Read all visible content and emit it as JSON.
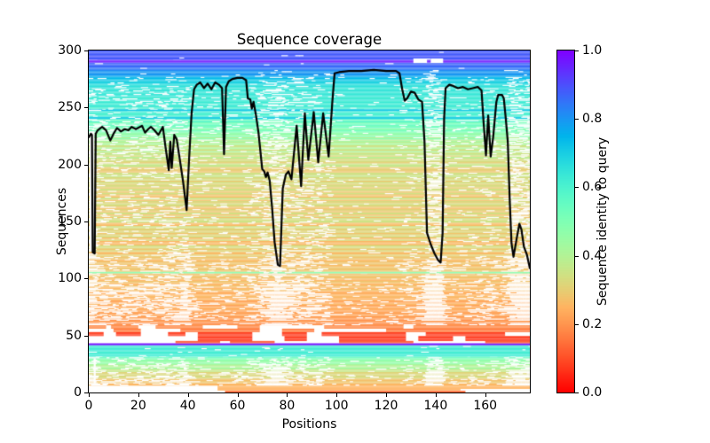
{
  "colors": {
    "background": "#ffffff",
    "text": "#000000",
    "frame": "#000000",
    "coverage_line": "#000000",
    "gap": "#ffffff"
  },
  "chart_data": {
    "type": "heatmap",
    "title": "Sequence coverage",
    "xlabel": "Positions",
    "ylabel": "Sequences",
    "xlim": [
      0,
      178
    ],
    "ylim": [
      0,
      300
    ],
    "xticks": [
      0,
      20,
      40,
      60,
      80,
      100,
      120,
      140,
      160
    ],
    "yticks": [
      0,
      50,
      100,
      150,
      200,
      250,
      300
    ],
    "grid": false,
    "colormap": "rainbow_r",
    "colorbar": {
      "label": "Sequence identity to query",
      "position": "right",
      "ticks": [
        0.0,
        0.2,
        0.4,
        0.6,
        0.8,
        1.0
      ],
      "tick_labels": [
        "0.0",
        "0.2",
        "0.4",
        "0.6",
        "0.8",
        "1.0"
      ]
    },
    "line_color": "#000000",
    "coverage_line": [
      [
        0,
        224
      ],
      [
        0.9,
        227
      ],
      [
        1.3,
        226
      ],
      [
        1.6,
        123
      ],
      [
        2.4,
        122
      ],
      [
        2.8,
        227
      ],
      [
        3.6,
        230
      ],
      [
        5.4,
        233
      ],
      [
        7,
        230
      ],
      [
        8.7,
        221
      ],
      [
        10,
        227
      ],
      [
        11.4,
        232
      ],
      [
        13,
        229
      ],
      [
        14.5,
        231
      ],
      [
        16,
        230
      ],
      [
        17.3,
        233
      ],
      [
        19,
        231
      ],
      [
        21.5,
        234
      ],
      [
        22.7,
        228
      ],
      [
        24,
        231
      ],
      [
        25.1,
        233
      ],
      [
        26.5,
        230
      ],
      [
        28.1,
        226
      ],
      [
        29.9,
        233
      ],
      [
        31,
        215
      ],
      [
        32.3,
        195
      ],
      [
        32.9,
        220
      ],
      [
        33.5,
        197
      ],
      [
        34.5,
        226
      ],
      [
        35.5,
        222
      ],
      [
        36.5,
        208
      ],
      [
        38,
        186
      ],
      [
        39.5,
        160
      ],
      [
        40.5,
        205
      ],
      [
        41.5,
        245
      ],
      [
        42.5,
        266
      ],
      [
        43.6,
        270
      ],
      [
        45,
        272
      ],
      [
        46.5,
        267
      ],
      [
        48,
        271
      ],
      [
        49.5,
        266
      ],
      [
        51,
        272
      ],
      [
        52.5,
        270
      ],
      [
        53.8,
        267
      ],
      [
        54.6,
        209
      ],
      [
        55.4,
        268
      ],
      [
        56.5,
        273
      ],
      [
        58,
        275
      ],
      [
        60,
        276
      ],
      [
        62,
        276
      ],
      [
        63.5,
        274
      ],
      [
        64.2,
        258
      ],
      [
        65.2,
        257
      ],
      [
        65.8,
        249
      ],
      [
        66.5,
        255
      ],
      [
        67.5,
        243
      ],
      [
        68.5,
        228
      ],
      [
        70,
        196
      ],
      [
        70.8,
        194
      ],
      [
        71.5,
        189
      ],
      [
        72.2,
        193
      ],
      [
        73,
        186
      ],
      [
        74,
        162
      ],
      [
        75,
        132
      ],
      [
        76.3,
        112
      ],
      [
        77.2,
        111
      ],
      [
        78.3,
        179
      ],
      [
        79.5,
        191
      ],
      [
        80.6,
        194
      ],
      [
        81.8,
        187
      ],
      [
        83.9,
        234
      ],
      [
        85.7,
        181
      ],
      [
        87.2,
        245
      ],
      [
        88.6,
        204
      ],
      [
        90.8,
        246
      ],
      [
        92.6,
        202
      ],
      [
        94.6,
        245
      ],
      [
        96.8,
        207
      ],
      [
        98.3,
        255
      ],
      [
        99.2,
        280
      ],
      [
        101,
        281
      ],
      [
        105,
        282
      ],
      [
        110,
        282
      ],
      [
        115,
        283
      ],
      [
        120,
        282
      ],
      [
        124,
        282
      ],
      [
        125.4,
        280
      ],
      [
        126.5,
        266
      ],
      [
        127.5,
        256
      ],
      [
        128.5,
        258
      ],
      [
        130,
        264
      ],
      [
        131.5,
        263
      ],
      [
        133,
        257
      ],
      [
        134.5,
        255
      ],
      [
        135.5,
        220
      ],
      [
        136.5,
        140
      ],
      [
        138,
        130
      ],
      [
        139.5,
        122
      ],
      [
        141,
        116
      ],
      [
        142,
        114
      ],
      [
        142.8,
        140
      ],
      [
        143.4,
        240
      ],
      [
        144,
        267
      ],
      [
        145.5,
        270
      ],
      [
        147,
        269
      ],
      [
        149,
        267
      ],
      [
        151,
        268
      ],
      [
        153,
        266
      ],
      [
        155,
        267
      ],
      [
        157,
        268
      ],
      [
        158.5,
        265
      ],
      [
        159.3,
        238
      ],
      [
        160.3,
        208
      ],
      [
        161.2,
        243
      ],
      [
        162.2,
        207
      ],
      [
        163.2,
        224
      ],
      [
        164.5,
        255
      ],
      [
        165.2,
        261
      ],
      [
        166.8,
        261
      ],
      [
        167.5,
        258
      ],
      [
        168.3,
        240
      ],
      [
        169.1,
        220
      ],
      [
        169.9,
        168
      ],
      [
        170.6,
        131
      ],
      [
        171.4,
        119
      ],
      [
        172.6,
        134
      ],
      [
        173.8,
        148
      ],
      [
        174.6,
        143
      ],
      [
        175.6,
        128
      ],
      [
        176.8,
        121
      ],
      [
        178,
        109
      ]
    ],
    "bands": [
      {
        "rows": [
          0,
          1.6
        ],
        "identity": 0.13,
        "segments": [
          [
            55,
            152
          ]
        ]
      },
      {
        "rows": [
          1.6,
          3.2
        ],
        "identity": 0.24,
        "segments": [
          [
            52,
            150
          ]
        ]
      },
      {
        "rows": [
          3.2,
          6
        ],
        "identity": 0.25,
        "segments": [
          [
            52,
            178
          ]
        ]
      },
      {
        "rows": [
          6,
          16
        ],
        "identity": [
          0.26,
          0.34
        ],
        "gap_weight": 1.5,
        "jitter": 0.03
      },
      {
        "rows": [
          16,
          24
        ],
        "identity": [
          0.34,
          0.44
        ],
        "gap_weight": 1.15,
        "jitter": 0.05
      },
      {
        "rows": [
          24,
          31.5
        ],
        "identity": [
          0.44,
          0.53
        ],
        "gap_weight": 0.85,
        "jitter": 0.04
      },
      {
        "rows": [
          31.5,
          41.5
        ],
        "identity": [
          0.62,
          0.63
        ],
        "gap_weight": 0.13,
        "jitter": 0.01
      },
      {
        "rows": [
          41.5,
          43.2
        ],
        "identity": 0.98,
        "gap_weight": 0
      },
      {
        "rows": [
          43.2,
          45.2
        ],
        "identity": 0.1,
        "segments": [
          [
            35,
            53
          ],
          [
            57,
            75
          ],
          [
            101,
            131
          ],
          [
            160,
            178
          ]
        ]
      },
      {
        "rows": [
          45.2,
          49.5
        ],
        "identity": 0.07,
        "segments": [
          [
            44,
            66
          ],
          [
            79,
            88
          ],
          [
            101,
            128
          ],
          [
            133,
            147
          ],
          [
            152,
            178
          ]
        ]
      },
      {
        "rows": [
          49.5,
          53
        ],
        "identity": 0.08,
        "segments": [
          [
            0,
            6
          ],
          [
            11,
            21
          ],
          [
            32,
            39
          ],
          [
            44,
            66
          ],
          [
            78,
            88
          ],
          [
            94,
            128
          ],
          [
            136,
            168
          ]
        ]
      },
      {
        "rows": [
          53,
          56
        ],
        "identity": 0.16,
        "segments": [
          [
            10,
            21
          ],
          [
            37,
            69
          ],
          [
            78,
            91
          ],
          [
            120,
            178
          ]
        ]
      },
      {
        "rows": [
          56,
          59
        ],
        "identity": 0.18,
        "segments": [
          [
            0,
            7
          ],
          [
            9,
            20
          ],
          [
            27,
            46
          ],
          [
            60,
            69
          ],
          [
            95,
            127
          ],
          [
            131,
            178
          ]
        ]
      },
      {
        "rows": [
          59,
          61.5
        ],
        "identity": [
          0.18,
          0.2
        ],
        "gap_weight": 1.75,
        "jitter": 0.02
      },
      {
        "rows": [
          61.5,
          63
        ],
        "identity": 0.21,
        "segments": [
          [
            0,
            120
          ],
          [
            125,
            178
          ]
        ]
      },
      {
        "rows": [
          63,
          75
        ],
        "identity": [
          0.2,
          0.24
        ],
        "gap_weight": 1.75,
        "jitter": 0.02
      },
      {
        "rows": [
          75,
          95
        ],
        "identity": [
          0.24,
          0.26
        ],
        "gap_weight": 1.6,
        "jitter": 0.02
      },
      {
        "rows": [
          95,
          104.5
        ],
        "identity": [
          0.26,
          0.27
        ],
        "gap_weight": 1.15,
        "jitter": 0.02
      },
      {
        "rows": [
          104.5,
          106
        ],
        "identity": 0.48,
        "gap_weight": 0.25
      },
      {
        "rows": [
          106,
          120
        ],
        "identity": [
          0.27,
          0.28
        ],
        "gap_weight": 1.15,
        "jitter": 0.02
      },
      {
        "rows": [
          120,
          160
        ],
        "identity": [
          0.29,
          0.31
        ],
        "gap_weight": 0.62,
        "jitter": 0.05
      },
      {
        "rows": [
          160,
          200
        ],
        "identity": [
          0.3,
          0.33
        ],
        "gap_weight": 0.62,
        "jitter": 0.05
      },
      {
        "rows": [
          200,
          212
        ],
        "identity": [
          0.32,
          0.38
        ],
        "gap_weight": 0.75,
        "jitter": 0.05
      },
      {
        "rows": [
          212,
          226
        ],
        "identity": [
          0.37,
          0.46
        ],
        "gap_weight": 0.85,
        "jitter": 0.06
      },
      {
        "rows": [
          226,
          240
        ],
        "identity": [
          0.46,
          0.58
        ],
        "gap_weight": 0.9,
        "jitter": 0.05
      },
      {
        "rows": [
          240,
          242
        ],
        "identity": 0.7,
        "gap_weight": 0.45
      },
      {
        "rows": [
          242,
          246.8
        ],
        "identity": 0.61,
        "gap_weight": 0.68,
        "jitter": 0.015
      },
      {
        "rows": [
          246.8,
          248.6
        ],
        "identity": 0.71,
        "gap_weight": 0.5
      },
      {
        "rows": [
          248.6,
          268
        ],
        "identity": [
          0.62,
          0.64
        ],
        "gap_weight": 0.68,
        "jitter": 0.015
      },
      {
        "rows": [
          268,
          277
        ],
        "identity": [
          0.66,
          0.74
        ],
        "gap_weight": 0.5,
        "jitter": 0.02
      },
      {
        "rows": [
          277,
          283
        ],
        "identity": [
          0.77,
          0.83
        ],
        "gap_weight": 0.28,
        "jitter": 0.02
      },
      {
        "rows": [
          283,
          289.5
        ],
        "identity": [
          0.85,
          0.88
        ],
        "gap_weight": 0.1,
        "jitter": 0.01
      },
      {
        "rows": [
          289.5,
          291.8
        ],
        "identity": 0.97,
        "gap_weight": 0
      },
      {
        "rows": [
          291.8,
          300
        ],
        "identity": 0.89,
        "gap_weight": 0.06,
        "jitter": 0.008
      }
    ],
    "white_strips": [
      {
        "rows": [
          124,
          229
        ],
        "x": [
          0.35,
          2.15
        ]
      },
      {
        "rows": [
          8,
          30
        ],
        "x": [
          2.0,
          2.8
        ]
      },
      {
        "rows": [
          289,
          293
        ],
        "x": [
          131,
          136.5
        ]
      },
      {
        "rows": [
          289,
          293
        ],
        "x": [
          138,
          143
        ]
      }
    ]
  }
}
